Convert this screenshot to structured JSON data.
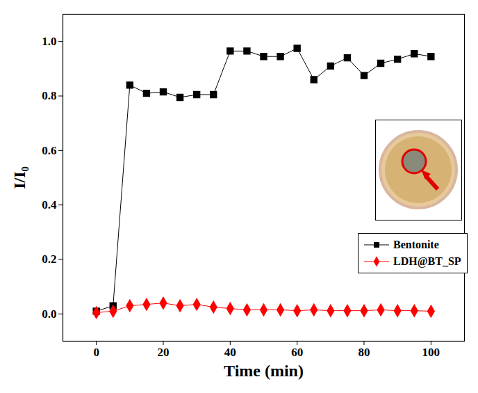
{
  "chart_data": {
    "type": "line",
    "x_label": "Time (min)",
    "y_label": "I/I₀",
    "xlim": [
      -10,
      110
    ],
    "ylim": [
      -0.1,
      1.1
    ],
    "xticks": [
      0,
      20,
      40,
      60,
      80,
      100
    ],
    "yticks": [
      {
        "value": 0,
        "label": "0.0"
      },
      0.2,
      0.4,
      0.6,
      0.8,
      {
        "value": 1,
        "label": "1.0"
      }
    ],
    "x": [
      0,
      5,
      10,
      15,
      20,
      25,
      30,
      35,
      40,
      45,
      50,
      55,
      60,
      65,
      70,
      75,
      80,
      85,
      90,
      95,
      100
    ],
    "series": [
      {
        "name": "Bentonite",
        "color": "#000000",
        "marker": "square",
        "values": [
          0.01,
          0.03,
          0.84,
          0.81,
          0.815,
          0.795,
          0.805,
          0.805,
          0.965,
          0.965,
          0.945,
          0.945,
          0.975,
          0.86,
          0.91,
          0.94,
          0.875,
          0.92,
          0.935,
          0.955,
          0.945
        ]
      },
      {
        "name": "LDH@BT_SP",
        "color": "#ff0000",
        "marker": "diamond",
        "values": [
          0.005,
          0.01,
          0.03,
          0.035,
          0.04,
          0.03,
          0.035,
          0.025,
          0.02,
          0.015,
          0.015,
          0.015,
          0.012,
          0.015,
          0.012,
          0.012,
          0.012,
          0.015,
          0.012,
          0.012,
          0.01
        ]
      }
    ],
    "legend": "lower right",
    "grid": false
  }
}
